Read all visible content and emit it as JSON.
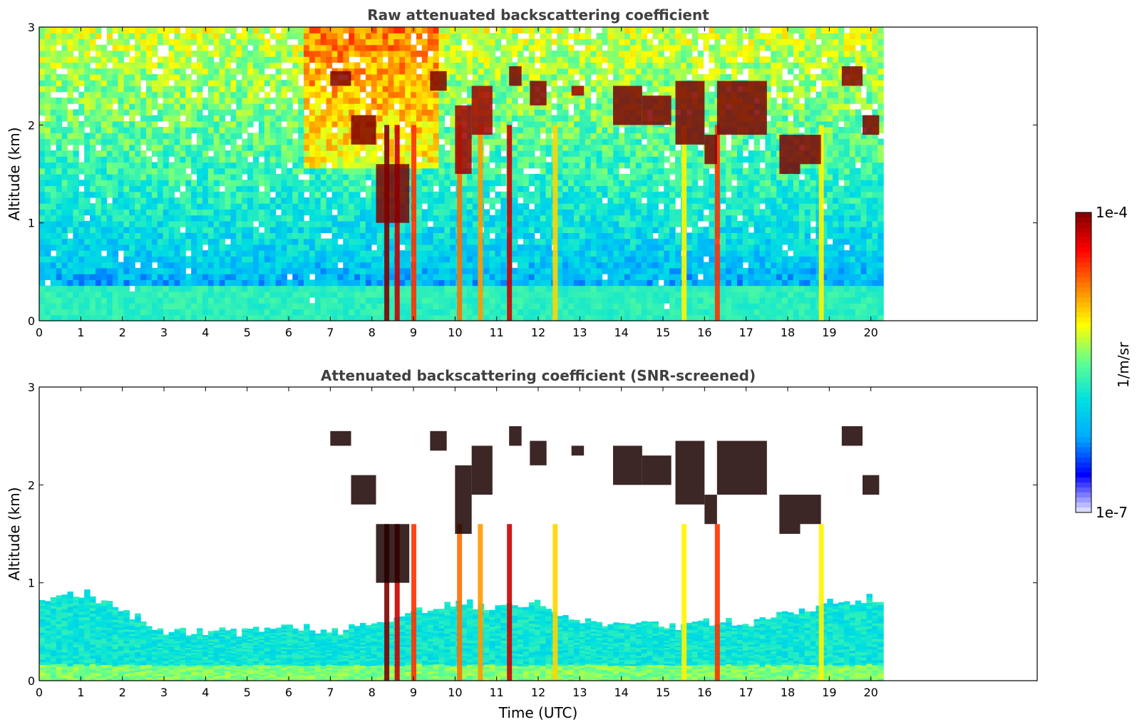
{
  "chart_data": [
    {
      "type": "heatmap",
      "title": "Raw attenuated backscattering coefficient",
      "xlabel": "",
      "ylabel": "Altitude (km)",
      "xlim": [
        0,
        24
      ],
      "ylim": [
        0,
        3
      ],
      "x_ticks": [
        "0",
        "1",
        "2",
        "3",
        "4",
        "5",
        "6",
        "7",
        "8",
        "9",
        "10",
        "11",
        "12",
        "13",
        "14",
        "15",
        "16",
        "17",
        "18",
        "19",
        "20"
      ],
      "y_ticks": [
        "0",
        "1",
        "2",
        "3"
      ],
      "data_end_time_utc": 20.3,
      "background_layer": {
        "top_km": 0.35,
        "value": 2e-06
      },
      "noise_level": {
        "surface": 3e-07,
        "top": 6e-06
      },
      "cloud_segments": [
        {
          "time": [
            7.0,
            7.5
          ],
          "altitude_km": [
            2.4,
            2.55
          ],
          "value": 0.0001
        },
        {
          "time": [
            7.5,
            8.1
          ],
          "altitude_km": [
            1.8,
            2.1
          ],
          "value": 0.0001
        },
        {
          "time": [
            8.1,
            8.9
          ],
          "altitude_km": [
            1.0,
            1.6
          ],
          "value": 0.0001
        },
        {
          "time": [
            9.4,
            9.8
          ],
          "altitude_km": [
            2.35,
            2.55
          ],
          "value": 0.0001
        },
        {
          "time": [
            10.0,
            10.4
          ],
          "altitude_km": [
            1.5,
            2.2
          ],
          "value": 8e-05
        },
        {
          "time": [
            10.4,
            10.9
          ],
          "altitude_km": [
            1.9,
            2.4
          ],
          "value": 8e-05
        },
        {
          "time": [
            11.3,
            11.6
          ],
          "altitude_km": [
            2.4,
            2.6
          ],
          "value": 0.0001
        },
        {
          "time": [
            11.8,
            12.2
          ],
          "altitude_km": [
            2.2,
            2.45
          ],
          "value": 0.0001
        },
        {
          "time": [
            12.8,
            13.1
          ],
          "altitude_km": [
            2.3,
            2.4
          ],
          "value": 8e-05
        },
        {
          "time": [
            13.8,
            14.5
          ],
          "altitude_km": [
            2.0,
            2.4
          ],
          "value": 0.0001
        },
        {
          "time": [
            14.5,
            15.2
          ],
          "altitude_km": [
            2.0,
            2.3
          ],
          "value": 0.0001
        },
        {
          "time": [
            15.3,
            16.0
          ],
          "altitude_km": [
            1.8,
            2.45
          ],
          "value": 0.0001
        },
        {
          "time": [
            16.0,
            16.3
          ],
          "altitude_km": [
            1.6,
            1.9
          ],
          "value": 0.0001
        },
        {
          "time": [
            16.3,
            17.5
          ],
          "altitude_km": [
            1.9,
            2.45
          ],
          "value": 0.0001
        },
        {
          "time": [
            17.8,
            18.3
          ],
          "altitude_km": [
            1.5,
            1.9
          ],
          "value": 0.0001
        },
        {
          "time": [
            18.3,
            18.8
          ],
          "altitude_km": [
            1.6,
            1.9
          ],
          "value": 0.0001
        },
        {
          "time": [
            19.3,
            19.8
          ],
          "altitude_km": [
            2.4,
            2.6
          ],
          "value": 0.0001
        },
        {
          "time": [
            19.8,
            20.2
          ],
          "altitude_km": [
            1.9,
            2.1
          ],
          "value": 0.0001
        }
      ],
      "vertical_streaks": [
        {
          "time": 8.35,
          "value": 0.0001
        },
        {
          "time": 8.6,
          "value": 6e-05
        },
        {
          "time": 9.0,
          "value": 3e-05
        },
        {
          "time": 10.1,
          "value": 2e-05
        },
        {
          "time": 10.6,
          "value": 1.5e-05
        },
        {
          "time": 11.3,
          "value": 6e-05
        },
        {
          "time": 12.4,
          "value": 1e-05
        },
        {
          "time": 15.5,
          "value": 8e-06
        },
        {
          "time": 16.3,
          "value": 3e-05
        },
        {
          "time": 18.8,
          "value": 8e-06
        }
      ]
    },
    {
      "type": "heatmap",
      "title": "Attenuated backscattering coefficient (SNR-screened)",
      "xlabel": "Time (UTC)",
      "ylabel": "Altitude (km)",
      "xlim": [
        0,
        24
      ],
      "ylim": [
        0,
        3
      ],
      "x_ticks": [
        "0",
        "1",
        "2",
        "3",
        "4",
        "5",
        "6",
        "7",
        "8",
        "9",
        "10",
        "11",
        "12",
        "13",
        "14",
        "15",
        "16",
        "17",
        "18",
        "19",
        "20"
      ],
      "y_ticks": [
        "0",
        "1",
        "2",
        "3"
      ],
      "data_end_time_utc": 20.3,
      "boundary_layer_top_km": [
        [
          0,
          0.8
        ],
        [
          1,
          0.9
        ],
        [
          2,
          0.7
        ],
        [
          3,
          0.5
        ],
        [
          4,
          0.5
        ],
        [
          5,
          0.5
        ],
        [
          6,
          0.55
        ],
        [
          7,
          0.5
        ],
        [
          8,
          0.6
        ],
        [
          9,
          0.7
        ],
        [
          10,
          0.8
        ],
        [
          11,
          0.75
        ],
        [
          12,
          0.8
        ],
        [
          13,
          0.6
        ],
        [
          14,
          0.6
        ],
        [
          15,
          0.55
        ],
        [
          16,
          0.6
        ],
        [
          17,
          0.6
        ],
        [
          18,
          0.7
        ],
        [
          19,
          0.8
        ],
        [
          20,
          0.85
        ],
        [
          20.3,
          0.85
        ]
      ],
      "cloud_segments": [
        {
          "time": [
            7.0,
            7.5
          ],
          "altitude_km": [
            2.4,
            2.55
          ],
          "value": 0.0001
        },
        {
          "time": [
            7.5,
            8.1
          ],
          "altitude_km": [
            1.8,
            2.1
          ],
          "value": 0.0001
        },
        {
          "time": [
            8.1,
            8.9
          ],
          "altitude_km": [
            1.0,
            1.6
          ],
          "value": 0.0001
        },
        {
          "time": [
            9.4,
            9.8
          ],
          "altitude_km": [
            2.35,
            2.55
          ],
          "value": 0.0001
        },
        {
          "time": [
            10.0,
            10.4
          ],
          "altitude_km": [
            1.5,
            2.2
          ],
          "value": 8e-05
        },
        {
          "time": [
            10.4,
            10.9
          ],
          "altitude_km": [
            1.9,
            2.4
          ],
          "value": 8e-05
        },
        {
          "time": [
            11.3,
            11.6
          ],
          "altitude_km": [
            2.4,
            2.6
          ],
          "value": 0.0001
        },
        {
          "time": [
            11.8,
            12.2
          ],
          "altitude_km": [
            2.2,
            2.45
          ],
          "value": 0.0001
        },
        {
          "time": [
            12.8,
            13.1
          ],
          "altitude_km": [
            2.3,
            2.4
          ],
          "value": 8e-05
        },
        {
          "time": [
            13.8,
            14.5
          ],
          "altitude_km": [
            2.0,
            2.4
          ],
          "value": 0.0001
        },
        {
          "time": [
            14.5,
            15.2
          ],
          "altitude_km": [
            2.0,
            2.3
          ],
          "value": 0.0001
        },
        {
          "time": [
            15.3,
            16.0
          ],
          "altitude_km": [
            1.8,
            2.45
          ],
          "value": 0.0001
        },
        {
          "time": [
            16.0,
            16.3
          ],
          "altitude_km": [
            1.6,
            1.9
          ],
          "value": 0.0001
        },
        {
          "time": [
            16.3,
            17.5
          ],
          "altitude_km": [
            1.9,
            2.45
          ],
          "value": 0.0001
        },
        {
          "time": [
            17.8,
            18.3
          ],
          "altitude_km": [
            1.5,
            1.9
          ],
          "value": 0.0001
        },
        {
          "time": [
            18.3,
            18.8
          ],
          "altitude_km": [
            1.6,
            1.9
          ],
          "value": 0.0001
        },
        {
          "time": [
            19.3,
            19.8
          ],
          "altitude_km": [
            2.4,
            2.6
          ],
          "value": 0.0001
        },
        {
          "time": [
            19.8,
            20.2
          ],
          "altitude_km": [
            1.9,
            2.1
          ],
          "value": 0.0001
        }
      ]
    }
  ],
  "colorbar": {
    "label": "1/m/sr",
    "min_label": "1e-7",
    "max_label": "1e-4",
    "scale": "log",
    "colors": [
      "#e8e8ff",
      "#0000ff",
      "#00aaff",
      "#00e0e0",
      "#60ff90",
      "#ffff00",
      "#ff8000",
      "#ff0000",
      "#800000"
    ]
  }
}
